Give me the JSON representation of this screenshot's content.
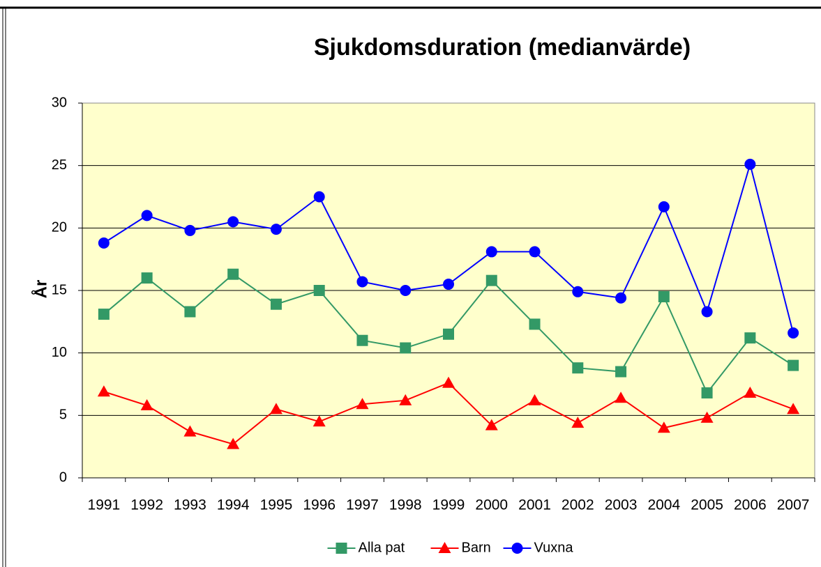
{
  "chart_data": {
    "type": "line",
    "title": "Sjukdomsduration  (medianvärde)",
    "y_label": "År",
    "categories": [
      "1991",
      "1992",
      "1993",
      "1994",
      "1995",
      "1996",
      "1997",
      "1998",
      "1999",
      "2000",
      "2001",
      "2002",
      "2003",
      "2004",
      "2005",
      "2006",
      "2007"
    ],
    "series": [
      {
        "name": "Alla pat",
        "color": "#339966",
        "marker": "square",
        "values": [
          13.1,
          16.0,
          13.3,
          16.3,
          13.9,
          15.0,
          11.0,
          10.4,
          11.5,
          15.8,
          12.3,
          8.8,
          8.5,
          14.5,
          6.8,
          11.2,
          9.0
        ]
      },
      {
        "name": "Barn",
        "color": "#ff0000",
        "marker": "triangle",
        "values": [
          6.9,
          5.8,
          3.7,
          2.7,
          5.5,
          4.5,
          5.9,
          6.2,
          7.6,
          4.2,
          6.2,
          4.4,
          6.4,
          4.0,
          4.8,
          6.8,
          5.5
        ]
      },
      {
        "name": "Vuxna",
        "color": "#0000ff",
        "marker": "circle",
        "values": [
          18.8,
          21.0,
          19.8,
          20.5,
          19.9,
          22.5,
          15.7,
          15.0,
          15.5,
          18.1,
          18.1,
          14.9,
          14.4,
          21.7,
          13.3,
          25.1,
          11.6
        ]
      }
    ],
    "ylim": [
      0,
      30
    ],
    "yticks": [
      0,
      5,
      10,
      15,
      20,
      25,
      30
    ],
    "grid": true,
    "legend": "bottom"
  }
}
